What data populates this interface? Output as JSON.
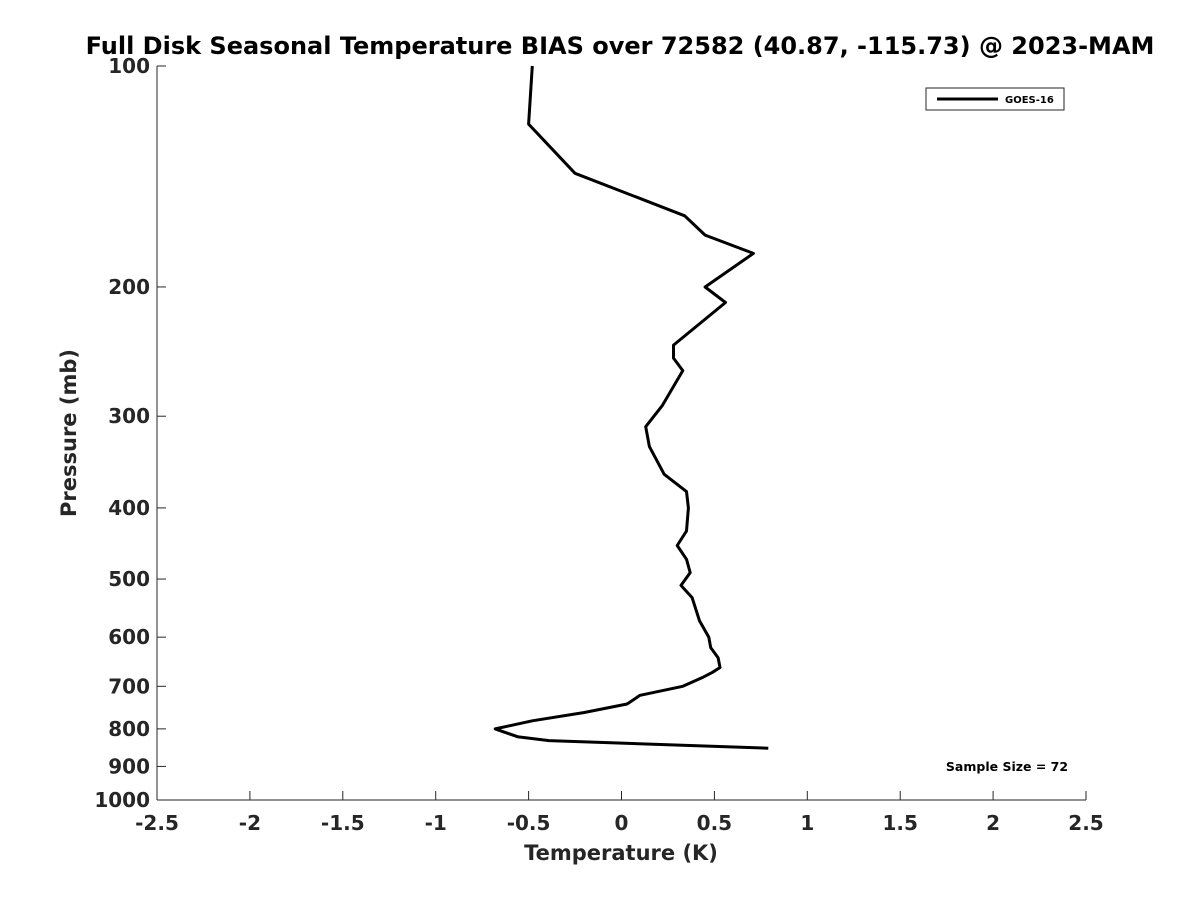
{
  "chart_data": {
    "type": "line",
    "title": "Full Disk Seasonal Temperature BIAS over 72582 (40.87, -115.73) @ 2023-MAM",
    "xlabel": "Temperature (K)",
    "ylabel": "Pressure (mb)",
    "xlim": [
      -2.5,
      2.5
    ],
    "ylim": [
      100,
      1000
    ],
    "y_scale": "log",
    "y_reversed": true,
    "x_ticks": [
      -2.5,
      -2,
      -1.5,
      -1,
      -0.5,
      0,
      0.5,
      1,
      1.5,
      2,
      2.5
    ],
    "x_tick_labels": [
      "-2.5",
      "-2",
      "-1.5",
      "-1",
      "-0.5",
      "0",
      "0.5",
      "1",
      "1.5",
      "2",
      "2.5"
    ],
    "y_ticks": [
      100,
      200,
      300,
      400,
      500,
      600,
      700,
      800,
      900,
      1000
    ],
    "y_tick_labels": [
      "100",
      "200",
      "300",
      "400",
      "500",
      "600",
      "700",
      "800",
      "900",
      "1000"
    ],
    "grid": false,
    "legend_position": "top-right",
    "annotation": "Sample Size = 72",
    "series": [
      {
        "name": "GOES-16",
        "color": "#000000",
        "x": [
          -0.48,
          -0.5,
          -0.25,
          0.34,
          0.45,
          0.71,
          0.45,
          0.56,
          0.28,
          0.28,
          0.33,
          0.22,
          0.13,
          0.15,
          0.23,
          0.35,
          0.36,
          0.35,
          0.3,
          0.35,
          0.37,
          0.32,
          0.38,
          0.42,
          0.47,
          0.48,
          0.52,
          0.53,
          0.49,
          0.44,
          0.33,
          0.1,
          0.03,
          -0.2,
          -0.48,
          -0.68,
          -0.56,
          -0.39,
          0.79
        ],
        "y": [
          100,
          120,
          140,
          160,
          170,
          180,
          200,
          210,
          240,
          250,
          260,
          290,
          310,
          330,
          360,
          380,
          400,
          430,
          450,
          470,
          490,
          510,
          530,
          570,
          600,
          620,
          640,
          660,
          670,
          680,
          700,
          720,
          740,
          760,
          780,
          800,
          820,
          830,
          850
        ]
      }
    ]
  }
}
